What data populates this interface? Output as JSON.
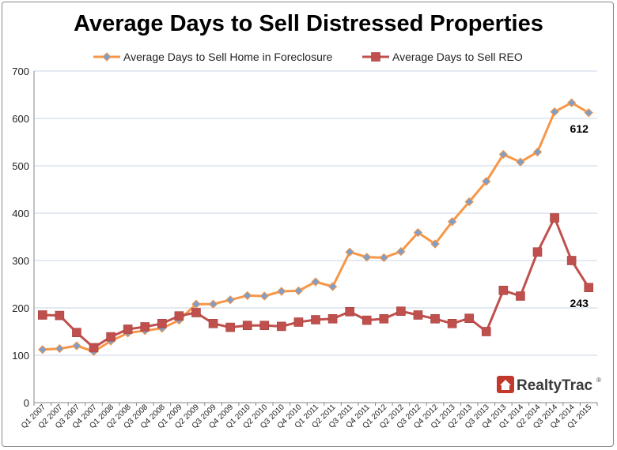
{
  "chart_data": {
    "type": "line",
    "title": "Average Days to Sell Distressed Properties",
    "categories": [
      "Q1 2007",
      "Q2 2007",
      "Q3 2007",
      "Q4 2007",
      "Q1 2008",
      "Q2 2008",
      "Q3 2008",
      "Q4 2008",
      "Q1 2009",
      "Q2 2009",
      "Q3 2009",
      "Q4 2009",
      "Q1 2010",
      "Q2 2010",
      "Q3 2010",
      "Q4 2010",
      "Q1 2011",
      "Q2 2011",
      "Q3 2011",
      "Q4 2011",
      "Q1 2012",
      "Q2 2012",
      "Q3 2012",
      "Q4 2012",
      "Q1 2013",
      "Q2 2013",
      "Q3 2013",
      "Q4 2013",
      "Q1 2014",
      "Q2 2014",
      "Q3 2014",
      "Q4 2014",
      "Q1 2015"
    ],
    "series": [
      {
        "name": "Average Days to Sell Home in Foreclosure",
        "color": "#f79646",
        "marker": "diamond",
        "marker_color": "#7f9fc9",
        "values": [
          112,
          114,
          120,
          108,
          130,
          147,
          152,
          157,
          174,
          208,
          208,
          217,
          226,
          225,
          235,
          236,
          255,
          245,
          318,
          307,
          306,
          319,
          359,
          335,
          382,
          424,
          467,
          524,
          508,
          529,
          614,
          633,
          612
        ]
      },
      {
        "name": "Average Days to Sell REO",
        "color": "#c0504d",
        "marker": "square",
        "marker_color": "#c0504d",
        "values": [
          185,
          184,
          148,
          116,
          139,
          155,
          160,
          167,
          183,
          190,
          167,
          159,
          163,
          163,
          161,
          170,
          175,
          177,
          192,
          174,
          177,
          193,
          185,
          177,
          167,
          178,
          150,
          237,
          225,
          318,
          390,
          300,
          243
        ]
      }
    ],
    "annotations": [
      {
        "series": 0,
        "index": 32,
        "text": "612"
      },
      {
        "series": 1,
        "index": 32,
        "text": "243"
      }
    ],
    "ylim": [
      0,
      700
    ],
    "yticks": [
      0,
      100,
      200,
      300,
      400,
      500,
      600,
      700
    ],
    "grid": true,
    "legend_position": "top",
    "xlabel": "",
    "ylabel": ""
  },
  "logo": {
    "text": "RealtyTrac",
    "trademark": "®",
    "color": "#c0392b"
  }
}
